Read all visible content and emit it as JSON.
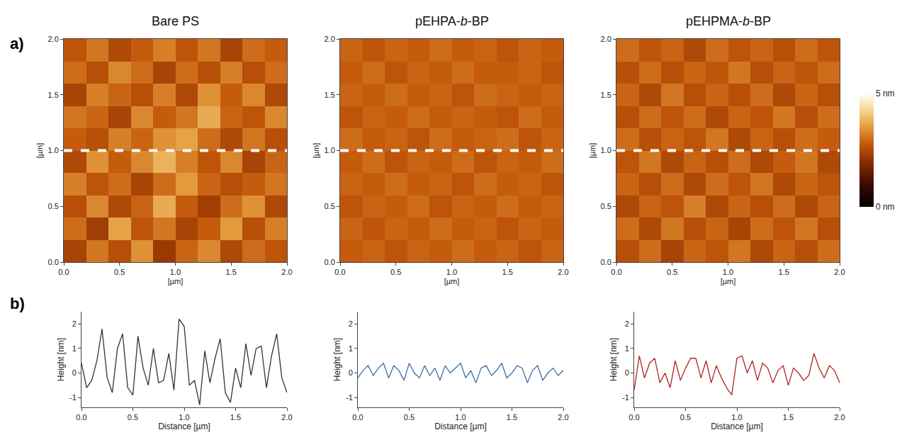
{
  "panel_labels": [
    "a)",
    "b)"
  ],
  "chart_data": [
    {
      "type": "heatmap",
      "title": "Bare PS",
      "x": [
        0.1,
        0.3,
        0.5,
        0.7,
        0.9,
        1.1,
        1.3,
        1.5,
        1.7,
        1.9
      ],
      "y": [
        0.1,
        0.3,
        0.5,
        0.7,
        0.9,
        1.1,
        1.3,
        1.5,
        1.7,
        1.9
      ],
      "z": [
        [
          2.4,
          3.1,
          2.6,
          3.4,
          2.2,
          2.9,
          3.3,
          2.5,
          3.0,
          2.7
        ],
        [
          3.0,
          2.3,
          3.6,
          2.7,
          3.1,
          2.4,
          2.8,
          3.5,
          2.6,
          3.2
        ],
        [
          2.6,
          3.3,
          2.5,
          2.9,
          3.7,
          2.8,
          2.3,
          3.0,
          3.4,
          2.5
        ],
        [
          3.2,
          2.7,
          3.0,
          2.4,
          3.0,
          3.5,
          2.9,
          2.6,
          2.8,
          3.1
        ],
        [
          2.5,
          3.4,
          2.8,
          3.3,
          3.8,
          3.2,
          2.7,
          3.3,
          2.4,
          2.9
        ],
        [
          2.8,
          2.6,
          3.2,
          2.9,
          3.4,
          3.6,
          3.0,
          2.5,
          3.1,
          2.6
        ],
        [
          3.1,
          2.9,
          2.4,
          3.3,
          2.8,
          3.1,
          3.7,
          2.9,
          2.7,
          3.3
        ],
        [
          2.4,
          3.2,
          2.9,
          2.6,
          3.2,
          2.5,
          3.4,
          2.8,
          3.3,
          2.5
        ],
        [
          3.0,
          2.6,
          3.3,
          3.0,
          2.4,
          3.0,
          2.6,
          3.2,
          2.6,
          3.0
        ],
        [
          2.7,
          3.1,
          2.5,
          2.8,
          3.2,
          2.7,
          3.1,
          2.4,
          3.0,
          2.8
        ]
      ],
      "zlim": [
        0,
        5
      ],
      "line_y": 1.0,
      "xlim": [
        0,
        2
      ],
      "ylim": [
        0,
        2
      ],
      "xticks": [
        {
          "value": 0,
          "label": "0.0"
        },
        {
          "value": 0.5,
          "label": "0.5"
        },
        {
          "value": 1,
          "label": "1.0"
        },
        {
          "value": 1.5,
          "label": "1.5"
        },
        {
          "value": 2,
          "label": "2.0"
        }
      ],
      "yticks": [
        {
          "value": 0,
          "label": "0.0"
        },
        {
          "value": 0.5,
          "label": "0.5"
        },
        {
          "value": 1,
          "label": "1.0"
        },
        {
          "value": 1.5,
          "label": "1.5"
        },
        {
          "value": 2,
          "label": "2.0"
        }
      ],
      "xlabel": "[µm]",
      "ylabel": "[µm]"
    },
    {
      "type": "heatmap",
      "title": "pEHPA-b-BP",
      "x": [
        0.1,
        0.3,
        0.5,
        0.7,
        0.9,
        1.1,
        1.3,
        1.5,
        1.7,
        1.9
      ],
      "y": [
        0.1,
        0.3,
        0.5,
        0.7,
        0.9,
        1.1,
        1.3,
        1.5,
        1.7,
        1.9
      ],
      "z": [
        [
          2.8,
          2.9,
          2.7,
          2.9,
          2.8,
          3.0,
          2.8,
          2.9,
          2.7,
          2.9
        ],
        [
          2.9,
          2.7,
          2.9,
          2.8,
          3.0,
          2.8,
          2.9,
          2.7,
          2.9,
          2.8
        ],
        [
          2.7,
          2.9,
          2.8,
          3.0,
          2.7,
          2.9,
          2.8,
          3.0,
          2.8,
          2.9
        ],
        [
          2.9,
          2.8,
          3.0,
          2.8,
          2.9,
          2.7,
          3.0,
          2.8,
          2.9,
          2.7
        ],
        [
          2.8,
          3.0,
          2.7,
          2.9,
          2.8,
          3.0,
          2.7,
          2.9,
          2.8,
          3.0
        ],
        [
          3.0,
          2.8,
          2.9,
          2.7,
          3.0,
          2.8,
          2.9,
          3.0,
          2.7,
          2.9
        ],
        [
          2.7,
          2.9,
          2.8,
          3.0,
          2.8,
          2.9,
          2.8,
          2.7,
          3.0,
          2.8
        ],
        [
          2.9,
          2.8,
          3.0,
          2.8,
          2.9,
          2.7,
          3.0,
          2.9,
          2.8,
          2.9
        ],
        [
          2.8,
          3.0,
          2.7,
          2.9,
          2.8,
          3.0,
          2.8,
          2.8,
          2.9,
          2.7
        ],
        [
          2.9,
          2.7,
          2.9,
          2.8,
          3.0,
          2.8,
          2.9,
          2.7,
          2.9,
          2.8
        ]
      ],
      "zlim": [
        0,
        5
      ],
      "line_y": 1.0,
      "xlim": [
        0,
        2
      ],
      "ylim": [
        0,
        2
      ],
      "xticks": [
        {
          "value": 0,
          "label": "0.0"
        },
        {
          "value": 0.5,
          "label": "0.5"
        },
        {
          "value": 1,
          "label": "1.0"
        },
        {
          "value": 1.5,
          "label": "1.5"
        },
        {
          "value": 2,
          "label": "2.0"
        }
      ],
      "yticks": [
        {
          "value": 0,
          "label": "0.0"
        },
        {
          "value": 0.5,
          "label": "0.5"
        },
        {
          "value": 1,
          "label": "1.0"
        },
        {
          "value": 1.5,
          "label": "1.5"
        },
        {
          "value": 2,
          "label": "2.0"
        }
      ],
      "xlabel": "[µm]",
      "ylabel": "[µm]"
    },
    {
      "type": "heatmap",
      "title": "pEHPMA-b-BP",
      "x": [
        0.1,
        0.3,
        0.5,
        0.7,
        0.9,
        1.1,
        1.3,
        1.5,
        1.7,
        1.9
      ],
      "y": [
        0.1,
        0.3,
        0.5,
        0.7,
        0.9,
        1.1,
        1.3,
        1.5,
        1.7,
        1.9
      ],
      "z": [
        [
          2.6,
          3.0,
          2.4,
          2.9,
          2.7,
          3.1,
          2.5,
          2.9,
          2.6,
          3.0
        ],
        [
          3.0,
          2.5,
          3.1,
          2.6,
          2.9,
          2.4,
          3.0,
          2.7,
          3.1,
          2.6
        ],
        [
          2.5,
          2.9,
          2.7,
          3.2,
          2.5,
          2.9,
          2.6,
          3.0,
          2.5,
          2.9
        ],
        [
          2.9,
          2.6,
          3.0,
          2.5,
          3.0,
          2.7,
          3.1,
          2.5,
          2.9,
          2.7
        ],
        [
          2.7,
          3.1,
          2.5,
          2.9,
          2.6,
          3.0,
          2.5,
          2.8,
          3.1,
          2.5
        ],
        [
          3.0,
          2.6,
          2.9,
          2.7,
          3.1,
          2.5,
          2.9,
          2.6,
          3.0,
          2.8
        ],
        [
          2.6,
          3.0,
          2.7,
          3.0,
          2.5,
          2.9,
          2.7,
          3.1,
          2.6,
          3.0
        ],
        [
          2.9,
          2.5,
          3.1,
          2.6,
          2.9,
          2.6,
          3.0,
          2.5,
          2.9,
          2.6
        ],
        [
          2.6,
          3.0,
          2.6,
          2.9,
          2.7,
          3.1,
          2.6,
          2.9,
          2.7,
          3.0
        ],
        [
          3.0,
          2.7,
          2.9,
          2.5,
          3.0,
          2.7,
          2.9,
          2.6,
          3.0,
          2.7
        ]
      ],
      "zlim": [
        0,
        5
      ],
      "line_y": 1.0,
      "colorbar_ticks": [
        {
          "value": 0,
          "label": "0 nm"
        },
        {
          "value": 5,
          "label": "5 nm"
        }
      ],
      "xlim": [
        0,
        2
      ],
      "ylim": [
        0,
        2
      ],
      "xticks": [
        {
          "value": 0,
          "label": "0.0"
        },
        {
          "value": 0.5,
          "label": "0.5"
        },
        {
          "value": 1,
          "label": "1.0"
        },
        {
          "value": 1.5,
          "label": "1.5"
        },
        {
          "value": 2,
          "label": "2.0"
        }
      ],
      "yticks": [
        {
          "value": 0,
          "label": "0.0"
        },
        {
          "value": 0.5,
          "label": "0.5"
        },
        {
          "value": 1,
          "label": "1.0"
        },
        {
          "value": 1.5,
          "label": "1.5"
        },
        {
          "value": 2,
          "label": "2.0"
        }
      ],
      "xlabel": "[µm]",
      "ylabel": "[µm]"
    },
    {
      "type": "line",
      "color": "#333333",
      "x": [
        0,
        0.05,
        0.1,
        0.15,
        0.2,
        0.25,
        0.3,
        0.35,
        0.4,
        0.45,
        0.5,
        0.55,
        0.6,
        0.65,
        0.7,
        0.75,
        0.8,
        0.85,
        0.9,
        0.95,
        1.0,
        1.05,
        1.1,
        1.15,
        1.2,
        1.25,
        1.3,
        1.35,
        1.4,
        1.45,
        1.5,
        1.55,
        1.6,
        1.65,
        1.7,
        1.75,
        1.8,
        1.85,
        1.9,
        1.95,
        2.0
      ],
      "values": [
        0.4,
        -0.6,
        -0.3,
        0.5,
        1.8,
        -0.2,
        -0.8,
        1.0,
        1.6,
        -0.6,
        -0.9,
        1.5,
        0.2,
        -0.5,
        1.0,
        -0.4,
        -0.3,
        0.8,
        -0.7,
        2.2,
        1.9,
        -0.5,
        -0.3,
        -1.3,
        0.9,
        -0.4,
        0.6,
        1.4,
        -0.8,
        -1.2,
        0.2,
        -0.6,
        1.2,
        -0.1,
        1.0,
        1.1,
        -0.6,
        0.7,
        1.6,
        -0.2,
        -0.8
      ],
      "xlim": [
        0,
        2
      ],
      "ylim": [
        -1.4,
        2.5
      ],
      "xticks": [
        {
          "value": 0,
          "label": "0.0"
        },
        {
          "value": 0.5,
          "label": "0.5"
        },
        {
          "value": 1,
          "label": "1.0"
        },
        {
          "value": 1.5,
          "label": "1.5"
        },
        {
          "value": 2,
          "label": "2.0"
        }
      ],
      "yticks": [
        -1,
        0,
        1,
        2
      ],
      "xlabel": "Distance [µm]",
      "ylabel": "Height [nm]"
    },
    {
      "type": "line",
      "color": "#3a6ea5",
      "x": [
        0,
        0.05,
        0.1,
        0.15,
        0.2,
        0.25,
        0.3,
        0.35,
        0.4,
        0.45,
        0.5,
        0.55,
        0.6,
        0.65,
        0.7,
        0.75,
        0.8,
        0.85,
        0.9,
        0.95,
        1.0,
        1.05,
        1.1,
        1.15,
        1.2,
        1.25,
        1.3,
        1.35,
        1.4,
        1.45,
        1.5,
        1.55,
        1.6,
        1.65,
        1.7,
        1.75,
        1.8,
        1.85,
        1.9,
        1.95,
        2.0
      ],
      "values": [
        -0.2,
        0.1,
        0.3,
        -0.1,
        0.2,
        0.4,
        -0.2,
        0.3,
        0.1,
        -0.3,
        0.4,
        0.0,
        -0.2,
        0.3,
        -0.1,
        0.2,
        -0.3,
        0.3,
        0.0,
        0.2,
        0.4,
        -0.2,
        0.1,
        -0.4,
        0.2,
        0.3,
        -0.1,
        0.1,
        0.4,
        -0.2,
        0.0,
        0.3,
        0.2,
        -0.4,
        0.1,
        0.3,
        -0.3,
        0.0,
        0.2,
        -0.1,
        0.1
      ],
      "xlim": [
        0,
        2
      ],
      "ylim": [
        -1.4,
        2.5
      ],
      "xticks": [
        {
          "value": 0,
          "label": "0.0"
        },
        {
          "value": 0.5,
          "label": "0.5"
        },
        {
          "value": 1,
          "label": "1.0"
        },
        {
          "value": 1.5,
          "label": "1.5"
        },
        {
          "value": 2,
          "label": "2.0"
        }
      ],
      "yticks": [
        -1,
        0,
        1,
        2
      ],
      "xlabel": "Distance [µm]",
      "ylabel": "Height [nm]"
    },
    {
      "type": "line",
      "color": "#b22222",
      "x": [
        0,
        0.05,
        0.1,
        0.15,
        0.2,
        0.25,
        0.3,
        0.35,
        0.4,
        0.45,
        0.5,
        0.55,
        0.6,
        0.65,
        0.7,
        0.75,
        0.8,
        0.85,
        0.9,
        0.95,
        1.0,
        1.05,
        1.1,
        1.15,
        1.2,
        1.25,
        1.3,
        1.35,
        1.4,
        1.45,
        1.5,
        1.55,
        1.6,
        1.65,
        1.7,
        1.75,
        1.8,
        1.85,
        1.9,
        1.95,
        2.0
      ],
      "values": [
        -0.7,
        0.7,
        -0.2,
        0.4,
        0.6,
        -0.4,
        0.0,
        -0.6,
        0.5,
        -0.3,
        0.2,
        0.6,
        0.6,
        -0.2,
        0.5,
        -0.4,
        0.3,
        -0.2,
        -0.6,
        -0.9,
        0.6,
        0.7,
        0.0,
        0.5,
        -0.3,
        0.4,
        0.2,
        -0.4,
        0.1,
        0.3,
        -0.5,
        0.2,
        0.0,
        -0.3,
        -0.1,
        0.8,
        0.2,
        -0.2,
        0.3,
        0.1,
        -0.4
      ],
      "xlim": [
        0,
        2
      ],
      "ylim": [
        -1.4,
        2.5
      ],
      "xticks": [
        {
          "value": 0,
          "label": "0.0"
        },
        {
          "value": 0.5,
          "label": "0.5"
        },
        {
          "value": 1,
          "label": "1.0"
        },
        {
          "value": 1.5,
          "label": "1.5"
        },
        {
          "value": 2,
          "label": "2.0"
        }
      ],
      "yticks": [
        -1,
        0,
        1,
        2
      ],
      "xlabel": "Distance [µm]",
      "ylabel": "Height [nm]"
    }
  ]
}
